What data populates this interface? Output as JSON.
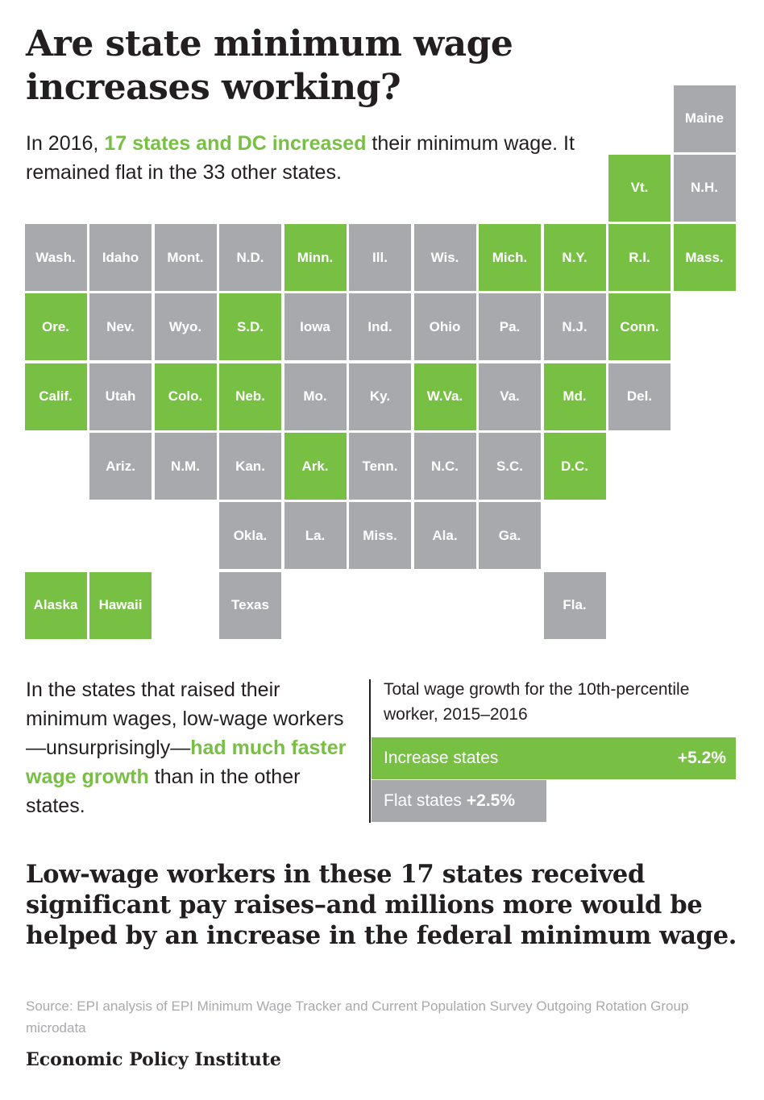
{
  "header": {
    "title": "Are state minimum wage increases working?"
  },
  "intro": {
    "prefix": "In 2016,",
    "highlight": "17 states and DC increased",
    "suffix": "their minimum wage. It remained flat in the 33 other states."
  },
  "map": {
    "colors": {
      "increase": "#77c043",
      "flat": "#a7a9ac"
    },
    "tiles": [
      {
        "label": "Maine",
        "status": "flat"
      },
      {
        "label": "Vt.",
        "status": "increase"
      },
      {
        "label": "N.H.",
        "status": "flat"
      },
      {
        "label": "Wash.",
        "status": "flat"
      },
      {
        "label": "Idaho",
        "status": "flat"
      },
      {
        "label": "Mont.",
        "status": "flat"
      },
      {
        "label": "N.D.",
        "status": "flat"
      },
      {
        "label": "Minn.",
        "status": "increase"
      },
      {
        "label": "Ill.",
        "status": "flat"
      },
      {
        "label": "Wis.",
        "status": "flat"
      },
      {
        "label": "Mich.",
        "status": "increase"
      },
      {
        "label": "N.Y.",
        "status": "increase"
      },
      {
        "label": "R.I.",
        "status": "increase"
      },
      {
        "label": "Mass.",
        "status": "increase"
      },
      {
        "label": "Ore.",
        "status": "increase"
      },
      {
        "label": "Nev.",
        "status": "flat"
      },
      {
        "label": "Wyo.",
        "status": "flat"
      },
      {
        "label": "S.D.",
        "status": "increase"
      },
      {
        "label": "Iowa",
        "status": "flat"
      },
      {
        "label": "Ind.",
        "status": "flat"
      },
      {
        "label": "Ohio",
        "status": "flat"
      },
      {
        "label": "Pa.",
        "status": "flat"
      },
      {
        "label": "N.J.",
        "status": "flat"
      },
      {
        "label": "Conn.",
        "status": "increase"
      },
      {
        "label": "Calif.",
        "status": "increase"
      },
      {
        "label": "Utah",
        "status": "flat"
      },
      {
        "label": "Colo.",
        "status": "increase"
      },
      {
        "label": "Neb.",
        "status": "increase"
      },
      {
        "label": "Mo.",
        "status": "flat"
      },
      {
        "label": "Ky.",
        "status": "flat"
      },
      {
        "label": "W.Va.",
        "status": "increase"
      },
      {
        "label": "Va.",
        "status": "flat"
      },
      {
        "label": "Md.",
        "status": "increase"
      },
      {
        "label": "Del.",
        "status": "flat"
      },
      {
        "label": "Ariz.",
        "status": "flat"
      },
      {
        "label": "N.M.",
        "status": "flat"
      },
      {
        "label": "Kan.",
        "status": "flat"
      },
      {
        "label": "Ark.",
        "status": "increase"
      },
      {
        "label": "Tenn.",
        "status": "flat"
      },
      {
        "label": "N.C.",
        "status": "flat"
      },
      {
        "label": "S.C.",
        "status": "flat"
      },
      {
        "label": "D.C.",
        "status": "increase"
      },
      {
        "label": "Okla.",
        "status": "flat"
      },
      {
        "label": "La.",
        "status": "flat"
      },
      {
        "label": "Miss.",
        "status": "flat"
      },
      {
        "label": "Ala.",
        "status": "flat"
      },
      {
        "label": "Ga.",
        "status": "flat"
      },
      {
        "label": "Alaska",
        "status": "increase"
      },
      {
        "label": "Hawaii",
        "status": "increase"
      },
      {
        "label": "Texas",
        "status": "flat"
      },
      {
        "label": "Fla.",
        "status": "flat"
      }
    ]
  },
  "findings": {
    "text_prefix": "In the states that raised their minimum wages, low-wage workers—unsurprisingly—",
    "text_highlight": "had much faster wage growth",
    "text_suffix": "than in the other states."
  },
  "chart_data": {
    "type": "bar",
    "title": "Total wage growth for the 10th-percentile worker, 2015–2016",
    "categories": [
      "Increase states",
      "Flat states"
    ],
    "values": [
      5.2,
      2.5
    ],
    "value_labels": [
      "+5.2%",
      "+2.5%"
    ],
    "unit": "%",
    "colors": [
      "#77c043",
      "#a7a9ac"
    ]
  },
  "conclusion": "Low-wage workers in these 17 states received significant pay raises–and millions more would be helped by an increase in the federal minimum wage.",
  "source": "Source: EPI analysis of EPI Minimum Wage Tracker and Current Population Survey Outgoing Rotation Group microdata",
  "organization": "Economic Policy Institute"
}
